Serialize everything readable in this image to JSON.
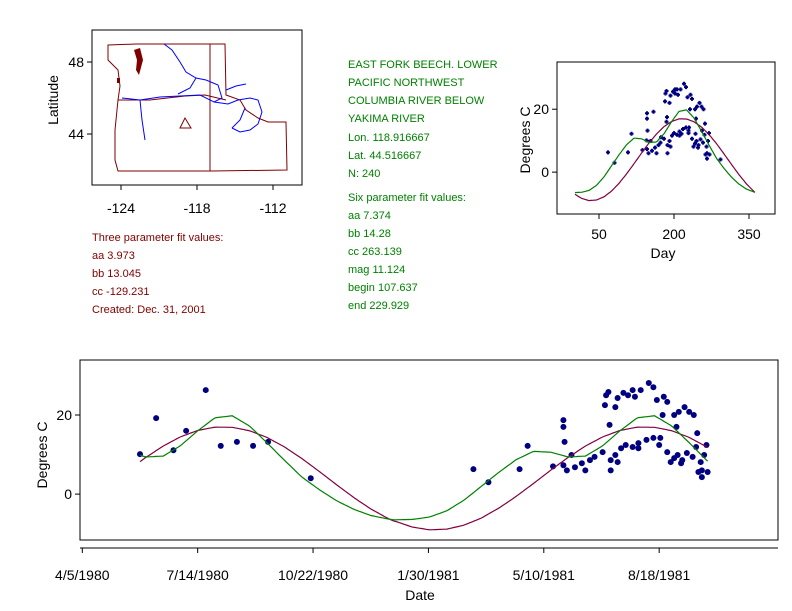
{
  "colors": {
    "fit3": "#800040",
    "fit6": "#008000",
    "points": "#000080",
    "state_borders": "#800000",
    "rivers": "#0000ff",
    "text_green": "#008000",
    "text_red": "#800000"
  },
  "map": {
    "ylabel": "Latitude",
    "xticks": [
      "-124",
      "-118",
      "-112"
    ],
    "yticks": [
      "48",
      "44"
    ],
    "station_marker": "triangle",
    "station": {
      "lon": -118.916667,
      "lat": 44.516667
    }
  },
  "three_fit": {
    "title": "Three parameter fit values:",
    "aa": "aa 3.973",
    "bb": "bb 13.045",
    "cc": "cc -129.231",
    "created": "Created:   Dec. 31, 2001"
  },
  "station_info": {
    "line1": "EAST FORK BEECH. LOWER",
    "line2": "PACIFIC NORTHWEST",
    "line3": "COLUMBIA RIVER BELOW YAKIMA RIVER",
    "lon": "Lon. 118.916667",
    "lat": "Lat. 44.516667",
    "n": "N: 240"
  },
  "six_fit": {
    "title": "Six parameter fit values:",
    "aa": "aa 7.374",
    "bb": "bb 14.28",
    "cc": "cc 263.139",
    "mag": "mag 11.124",
    "begin": "begin 107.637",
    "end": "end 229.929"
  },
  "chart_data": [
    {
      "type": "scatter",
      "id": "by-day",
      "xlabel": "Day",
      "ylabel": "Degrees C",
      "xticks": [
        50,
        200,
        350
      ],
      "yticks": [
        0,
        20
      ],
      "xlim": [
        -34,
        402
      ],
      "ylim": [
        -13.3,
        35
      ],
      "grid": false
    },
    {
      "type": "scatter",
      "id": "by-date",
      "xlabel": "Date",
      "ylabel": "Degrees C",
      "xticks": [
        "4/5/1980",
        "7/14/1980",
        "10/22/1980",
        "1/30/1981",
        "5/10/1981",
        "8/18/1981"
      ],
      "yticks": [
        0,
        20
      ],
      "xlim": [
        "1980-04-03",
        "1981-11-29"
      ],
      "ylim": [
        -11.6,
        33.9
      ],
      "grid": false
    },
    {
      "curve_day_of_year": [
        0,
        15,
        30,
        45,
        60,
        75,
        90,
        105,
        120,
        135,
        150,
        165,
        180,
        195,
        210,
        225,
        240,
        255,
        270,
        285,
        300,
        315,
        330,
        345,
        360,
        365
      ],
      "series": [
        {
          "type": "line",
          "values": [
            -6.83,
            -8.33,
            -9.03,
            -8.85,
            -7.84,
            -6.03,
            -3.55,
            -0.59,
            2.68,
            6.04,
            9.27,
            12.13,
            14.46,
            16.09,
            16.93,
            16.89,
            16.01,
            14.33,
            11.97,
            9.06,
            5.81,
            2.46,
            -0.8,
            -3.74,
            -6.16,
            -6.83
          ]
        },
        {
          "type": "line",
          "values": [
            -6.5,
            -6.4,
            -5.8,
            -4.2,
            -1.5,
            2,
            5.5,
            8.7,
            10.8,
            10.6,
            9.4,
            9.6,
            12.2,
            16,
            19.3,
            19.8,
            17.2,
            13,
            8.6,
            4.4,
            1.2,
            -1.6,
            -3.8,
            -5.4,
            -6.3,
            -6.5
          ]
        }
      ],
      "points": [
        [
          "1980-05-25",
          10.1
        ],
        [
          "1980-06-08",
          19.2
        ],
        [
          "1980-06-23",
          11.1
        ],
        [
          "1980-07-04",
          16
        ],
        [
          "1980-07-21",
          26.3
        ],
        [
          "1980-08-03",
          12.2
        ],
        [
          "1980-08-17",
          13.2
        ],
        [
          "1980-08-31",
          12.2
        ],
        [
          "1980-09-13",
          13.2
        ],
        [
          "1980-10-20",
          4
        ],
        [
          "1981-03-10",
          6.3
        ],
        [
          "1981-03-23",
          3
        ],
        [
          "1981-04-19",
          6.3
        ],
        [
          "1981-04-26",
          12.2
        ],
        [
          "1981-05-18",
          7
        ],
        [
          "1981-05-27",
          18.7
        ],
        [
          "1981-05-27",
          17
        ],
        [
          "1981-05-28",
          13.2
        ],
        [
          "1981-05-27",
          7.3
        ],
        [
          "1981-05-30",
          6
        ],
        [
          "1981-06-03",
          9.9
        ],
        [
          "1981-06-06",
          6.8
        ],
        [
          "1981-06-12",
          7.8
        ],
        [
          "1981-06-15",
          6
        ],
        [
          "1981-06-19",
          8.6
        ],
        [
          "1981-06-23",
          9.4
        ],
        [
          "1981-06-30",
          10.6
        ],
        [
          "1981-07-03",
          25
        ],
        [
          "1981-07-02",
          22.5
        ],
        [
          "1981-07-05",
          25.8
        ],
        [
          "1981-07-06",
          17.5
        ],
        [
          "1981-07-07",
          8.6
        ],
        [
          "1981-07-11",
          9.9
        ],
        [
          "1981-07-11",
          22
        ],
        [
          "1981-07-13",
          24.3
        ],
        [
          "1981-07-18",
          25.6
        ],
        [
          "1981-07-22",
          25
        ],
        [
          "1981-07-26",
          26.3
        ],
        [
          "1981-07-28",
          24.6
        ],
        [
          "1981-07-16",
          11.6
        ],
        [
          "1981-07-20",
          12.4
        ],
        [
          "1981-07-26",
          11.9
        ],
        [
          "1981-07-31",
          12.9
        ],
        [
          "1981-07-07",
          6
        ],
        [
          "1981-07-13",
          8.1
        ],
        [
          "1981-08-02",
          26.3
        ],
        [
          "1981-08-09",
          28.1
        ],
        [
          "1981-08-13",
          27
        ],
        [
          "1981-08-16",
          23.8
        ],
        [
          "1981-08-22",
          24.6
        ],
        [
          "1981-08-25",
          23.3
        ],
        [
          "1981-08-21",
          20
        ],
        [
          "1981-08-31",
          20
        ],
        [
          "1981-09-04",
          20.8
        ],
        [
          "1981-09-09",
          22
        ],
        [
          "1981-09-13",
          20.8
        ],
        [
          "1981-09-17",
          20
        ],
        [
          "1981-09-02",
          17
        ],
        [
          "1981-09-20",
          15.4
        ],
        [
          "1981-07-31",
          11.6
        ],
        [
          "1981-08-07",
          13.7
        ],
        [
          "1981-08-13",
          14.2
        ],
        [
          "1981-08-19",
          14.2
        ],
        [
          "1981-08-18",
          12.4
        ],
        [
          "1981-08-25",
          10.6
        ],
        [
          "1981-08-31",
          9.1
        ],
        [
          "1981-09-03",
          9.9
        ],
        [
          "1981-09-07",
          8.6
        ],
        [
          "1981-09-11",
          10.4
        ],
        [
          "1981-09-16",
          9.4
        ],
        [
          "1981-09-19",
          11.9
        ],
        [
          "1981-09-26",
          9.9
        ],
        [
          "1981-09-28",
          12.4
        ],
        [
          "1981-09-23",
          8.1
        ],
        [
          "1981-09-24",
          6
        ],
        [
          "1981-09-29",
          5.6
        ],
        [
          "1981-09-24",
          4.3
        ],
        [
          "1981-09-21",
          5.6
        ],
        [
          "1981-08-28",
          8.1
        ],
        [
          "1981-09-06",
          7.8
        ]
      ]
    }
  ]
}
